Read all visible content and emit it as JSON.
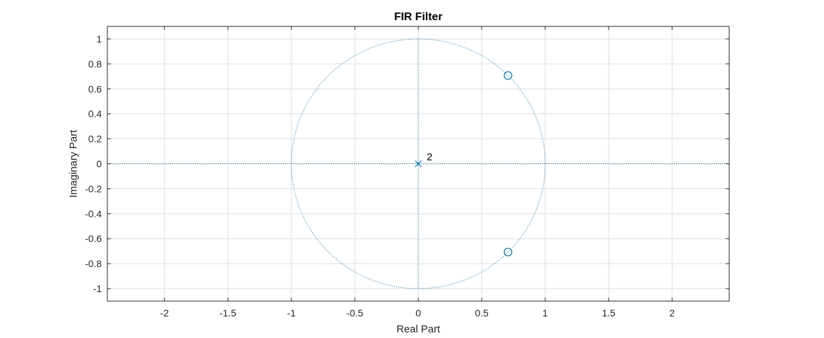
{
  "chart_data": {
    "type": "scatter",
    "title": "FIR Filter",
    "xlabel": "Real Part",
    "ylabel": "Imaginary Part",
    "xlim": [
      -2.45,
      2.45
    ],
    "ylim": [
      -1.1,
      1.1
    ],
    "x_ticks": [
      -2,
      -1.5,
      -1,
      -0.5,
      0,
      0.5,
      1,
      1.5,
      2
    ],
    "x_tick_labels": [
      "-2",
      "-1.5",
      "-1",
      "-0.5",
      "0",
      "0.5",
      "1",
      "1.5",
      "2"
    ],
    "y_ticks": [
      1,
      0.8,
      0.6,
      0.4,
      0.2,
      0,
      -0.2,
      -0.4,
      -0.6,
      -0.8,
      -1
    ],
    "y_tick_labels": [
      "1",
      "0.8",
      "0.6",
      "0.4",
      "0.2",
      "0",
      "-0.2",
      "-0.4",
      "-0.6",
      "-0.8",
      "-1"
    ],
    "grid": true,
    "unit_circle": true,
    "zeros": [
      {
        "x": 0.707,
        "y": 0.707
      },
      {
        "x": 0.707,
        "y": -0.707
      }
    ],
    "poles": [
      {
        "x": 0,
        "y": 0,
        "multiplicity_label": "2"
      }
    ],
    "colors": {
      "marker": "#0072BD",
      "grid": "#DDDDDD",
      "axes": "#262626"
    }
  }
}
